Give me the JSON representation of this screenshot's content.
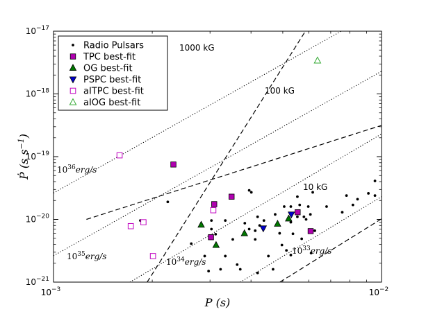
{
  "chart_data": {
    "type": "scatter",
    "xlabel": "P (s)",
    "ylabel": "Ṗ (s s⁻¹)",
    "xscale": "log",
    "yscale": "log",
    "xlim": [
      0.001,
      0.01
    ],
    "ylim": [
      1e-21,
      1e-17
    ],
    "x_ticks": [
      {
        "value": 0.001,
        "base": "10",
        "exp": "−3"
      },
      {
        "value": 0.01,
        "base": "10",
        "exp": "−2"
      }
    ],
    "y_ticks": [
      {
        "value": 1e-21,
        "base": "10",
        "exp": "−21"
      },
      {
        "value": 1e-20,
        "base": "10",
        "exp": "−20"
      },
      {
        "value": 1e-19,
        "base": "10",
        "exp": "−19"
      },
      {
        "value": 1e-18,
        "base": "10",
        "exp": "−18"
      },
      {
        "value": 1e-17,
        "base": "10",
        "exp": "−17"
      }
    ],
    "field_lines": [
      {
        "name": "1000 kG",
        "style": "dashed",
        "label": "1000 kG",
        "points": [
          [
            0.00193,
            1e-21
          ],
          [
            0.00586,
            1e-17
          ]
        ]
      },
      {
        "name": "100 kG",
        "style": "dashed",
        "label": "100 kG",
        "points": [
          [
            0.00126,
            1e-20
          ],
          [
            0.01,
            3.15e-19
          ]
        ]
      },
      {
        "name": "10 kG",
        "style": "dashed",
        "label": "10 kG",
        "points": [
          [
            0.0049,
            1e-21
          ],
          [
            0.01,
            1.02e-20
          ]
        ]
      }
    ],
    "luminosity_lines": [
      {
        "name": "1e36 erg/s",
        "style": "dotted",
        "label": {
          "base": "10",
          "exp": "36",
          "unit": "erg/s"
        },
        "points": [
          [
            0.001,
            2.63e-20
          ],
          [
            0.01,
            2.3e-17
          ]
        ]
      },
      {
        "name": "1e35 erg/s",
        "style": "dotted",
        "label": {
          "base": "10",
          "exp": "35",
          "unit": "erg/s"
        },
        "points": [
          [
            0.001,
            2.63e-21
          ],
          [
            0.01,
            2.3e-18
          ]
        ]
      },
      {
        "name": "1e34 erg/s",
        "style": "dotted",
        "label": {
          "base": "10",
          "exp": "34",
          "unit": "erg/s"
        },
        "points": [
          [
            0.00171,
            1e-21
          ],
          [
            0.01,
            2.3e-19
          ]
        ]
      },
      {
        "name": "1e33 erg/s",
        "style": "dotted",
        "label": {
          "base": "10",
          "exp": "33",
          "unit": "erg/s"
        },
        "points": [
          [
            0.00371,
            1e-21
          ],
          [
            0.01,
            2.3e-20
          ]
        ]
      }
    ],
    "series": [
      {
        "name": "Radio Pulsars",
        "marker": "dot",
        "color": "#000000",
        "points": [
          [
            0.00184,
            9.6e-21
          ],
          [
            0.00223,
            1.9e-20
          ],
          [
            0.00263,
            4.1e-21
          ],
          [
            0.00289,
            2.6e-21
          ],
          [
            0.00297,
            1.5e-21
          ],
          [
            0.00303,
            7e-21
          ],
          [
            0.00303,
            9.6e-21
          ],
          [
            0.00312,
            5.8e-21
          ],
          [
            0.00323,
            1.6e-21
          ],
          [
            0.00334,
            2.6e-21
          ],
          [
            0.00334,
            9.6e-21
          ],
          [
            0.00352,
            4.8e-21
          ],
          [
            0.00363,
            1.9e-21
          ],
          [
            0.00371,
            1.6e-21
          ],
          [
            0.00383,
            8.7e-21
          ],
          [
            0.00395,
            7e-21
          ],
          [
            0.00395,
            2.9e-20
          ],
          [
            0.00401,
            2.7e-20
          ],
          [
            0.00412,
            6.6e-21
          ],
          [
            0.00412,
            4.8e-21
          ],
          [
            0.00419,
            1.1e-20
          ],
          [
            0.00419,
            1.4e-21
          ],
          [
            0.00425,
            8e-21
          ],
          [
            0.00438,
            9.6e-21
          ],
          [
            0.00438,
            7.2e-21
          ],
          [
            0.00452,
            2.6e-21
          ],
          [
            0.00467,
            1.6e-21
          ],
          [
            0.00474,
            1.2e-20
          ],
          [
            0.00489,
            6e-21
          ],
          [
            0.00497,
            3.9e-21
          ],
          [
            0.00505,
            1.6e-20
          ],
          [
            0.00513,
            3.2e-21
          ],
          [
            0.00521,
            1e-20
          ],
          [
            0.00529,
            1.6e-20
          ],
          [
            0.00529,
            9e-21
          ],
          [
            0.00537,
            5.9e-21
          ],
          [
            0.00554,
            1.1e-20
          ],
          [
            0.00554,
            2.3e-20
          ],
          [
            0.00563,
            1.7e-20
          ],
          [
            0.00571,
            4.9e-21
          ],
          [
            0.0058,
            1.1e-20
          ],
          [
            0.00589,
            1e-20
          ],
          [
            0.00598,
            1.6e-20
          ],
          [
            0.00607,
            1.2e-20
          ],
          [
            0.00617,
            2.7e-20
          ],
          [
            0.00626,
            6.6e-21
          ],
          [
            0.0061,
            2.9e-21
          ],
          [
            0.0068,
            1.6e-20
          ],
          [
            0.00759,
            1.3e-20
          ],
          [
            0.00782,
            2.4e-20
          ],
          [
            0.00818,
            1.7e-20
          ],
          [
            0.00845,
            2.1e-20
          ],
          [
            0.00912,
            2.6e-20
          ],
          [
            0.00955,
            2.4e-20
          ],
          [
            0.00955,
            4.1e-20
          ],
          [
            0.00529,
            2.7e-21
          ]
        ]
      },
      {
        "name": "TPC best-fit",
        "marker": "square",
        "color": "#b000b0",
        "filled": true,
        "points": [
          [
            0.00232,
            7.5e-20
          ],
          [
            0.00309,
            1.75e-20
          ],
          [
            0.00349,
            2.3e-20
          ],
          [
            0.00302,
            5.2e-21
          ],
          [
            0.00555,
            1.3e-20
          ],
          [
            0.00608,
            6.5e-21
          ]
        ]
      },
      {
        "name": "OG best-fit",
        "marker": "triangle-up",
        "color": "#007800",
        "filled": true,
        "points": [
          [
            0.00282,
            8.2e-21
          ],
          [
            0.00313,
            3.9e-21
          ],
          [
            0.00382,
            6e-21
          ],
          [
            0.00482,
            8.5e-21
          ],
          [
            0.00521,
            1.03e-20
          ]
        ]
      },
      {
        "name": "PSPC best-fit",
        "marker": "triangle-down",
        "color": "#0000cc",
        "filled": true,
        "points": [
          [
            0.00436,
            7.2e-21
          ],
          [
            0.00531,
            1.2e-20
          ]
        ]
      },
      {
        "name": "aITPC best-fit",
        "marker": "square",
        "color": "#c000c0",
        "filled": false,
        "points": [
          [
            0.00159,
            1.05e-19
          ],
          [
            0.00172,
            7.8e-21
          ],
          [
            0.00188,
            9e-21
          ],
          [
            0.00201,
            2.6e-21
          ],
          [
            0.00307,
            1.4e-20
          ]
        ]
      },
      {
        "name": "aIOG best-fit",
        "marker": "triangle-up",
        "color": "#33aa33",
        "filled": false,
        "points": [
          [
            0.00638,
            3.4e-18
          ]
        ]
      }
    ],
    "legend": {
      "placement": "top-left"
    }
  },
  "labels": {
    "field_1000": "1000 kG",
    "field_100": "100 kG",
    "field_10": "10 kG",
    "lum36_base": "10",
    "lum36_exp": "36",
    "lum35_base": "10",
    "lum35_exp": "35",
    "lum34_base": "10",
    "lum34_exp": "34",
    "lum33_base": "10",
    "lum33_exp": "33",
    "lum_unit": "erg/s",
    "xlabel": "P (s)",
    "ylabel_main": "Ṗ (s s",
    "ylabel_sup": "−1",
    "ylabel_close": ")"
  }
}
